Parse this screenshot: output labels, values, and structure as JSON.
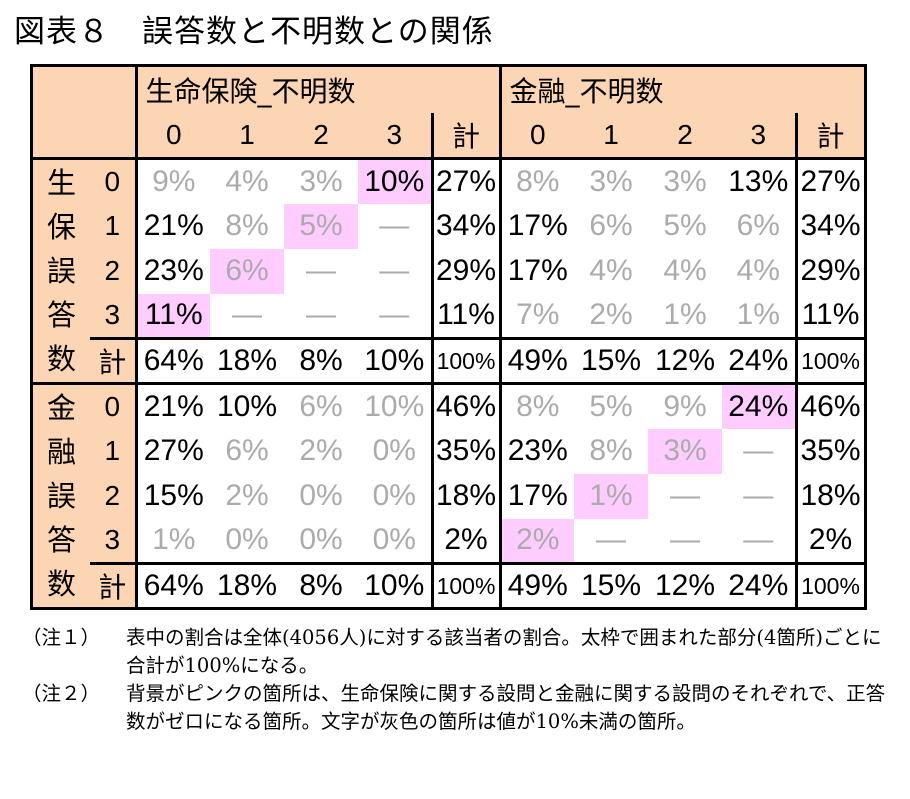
{
  "title": "図表８　誤答数と不明数との関係",
  "groups": {
    "life": "生命保険_不明数",
    "fin": "金融_不明数"
  },
  "col_labels": [
    "0",
    "1",
    "2",
    "3",
    "計"
  ],
  "row_groups": [
    {
      "label": "生保誤答数",
      "rows": [
        {
          "label": "0",
          "life": [
            "9%",
            "4%",
            "3%",
            "10%",
            "27%"
          ],
          "fin": [
            "8%",
            "3%",
            "3%",
            "13%",
            "27%"
          ]
        },
        {
          "label": "1",
          "life": [
            "21%",
            "8%",
            "5%",
            "—",
            "34%"
          ],
          "fin": [
            "17%",
            "6%",
            "5%",
            "6%",
            "34%"
          ]
        },
        {
          "label": "2",
          "life": [
            "23%",
            "6%",
            "—",
            "—",
            "29%"
          ],
          "fin": [
            "17%",
            "4%",
            "4%",
            "4%",
            "29%"
          ]
        },
        {
          "label": "3",
          "life": [
            "11%",
            "—",
            "—",
            "—",
            "11%"
          ],
          "fin": [
            "7%",
            "2%",
            "1%",
            "1%",
            "11%"
          ]
        },
        {
          "label": "計",
          "life": [
            "64%",
            "18%",
            "8%",
            "10%",
            "100%"
          ],
          "fin": [
            "49%",
            "15%",
            "12%",
            "24%",
            "100%"
          ]
        }
      ]
    },
    {
      "label": "金融誤答数",
      "rows": [
        {
          "label": "0",
          "life": [
            "21%",
            "10%",
            "6%",
            "10%",
            "46%"
          ],
          "fin": [
            "8%",
            "5%",
            "9%",
            "24%",
            "46%"
          ]
        },
        {
          "label": "1",
          "life": [
            "27%",
            "6%",
            "2%",
            "0%",
            "35%"
          ],
          "fin": [
            "23%",
            "8%",
            "3%",
            "—",
            "35%"
          ]
        },
        {
          "label": "2",
          "life": [
            "15%",
            "2%",
            "0%",
            "0%",
            "18%"
          ],
          "fin": [
            "17%",
            "1%",
            "—",
            "—",
            "18%"
          ]
        },
        {
          "label": "3",
          "life": [
            "1%",
            "0%",
            "0%",
            "0%",
            "2%"
          ],
          "fin": [
            "2%",
            "—",
            "—",
            "—",
            "2%"
          ]
        },
        {
          "label": "計",
          "life": [
            "64%",
            "18%",
            "8%",
            "10%",
            "100%"
          ],
          "fin": [
            "49%",
            "15%",
            "12%",
            "24%",
            "100%"
          ]
        }
      ]
    }
  ],
  "pink_cells": [
    [
      0,
      0,
      "life",
      3
    ],
    [
      0,
      1,
      "life",
      2
    ],
    [
      0,
      2,
      "life",
      1
    ],
    [
      0,
      3,
      "life",
      0
    ],
    [
      1,
      0,
      "fin",
      3
    ],
    [
      1,
      1,
      "fin",
      2
    ],
    [
      1,
      2,
      "fin",
      1
    ],
    [
      1,
      3,
      "fin",
      0
    ]
  ],
  "grey_cells": [
    [
      0,
      0,
      "life",
      0
    ],
    [
      0,
      0,
      "life",
      1
    ],
    [
      0,
      0,
      "life",
      2
    ],
    [
      0,
      1,
      "life",
      1
    ],
    [
      0,
      1,
      "life",
      2
    ],
    [
      0,
      1,
      "life",
      3
    ],
    [
      0,
      2,
      "life",
      1
    ],
    [
      0,
      2,
      "life",
      2
    ],
    [
      0,
      2,
      "life",
      3
    ],
    [
      0,
      3,
      "life",
      1
    ],
    [
      0,
      3,
      "life",
      2
    ],
    [
      0,
      3,
      "life",
      3
    ],
    [
      0,
      0,
      "fin",
      0
    ],
    [
      0,
      0,
      "fin",
      1
    ],
    [
      0,
      0,
      "fin",
      2
    ],
    [
      0,
      1,
      "fin",
      1
    ],
    [
      0,
      1,
      "fin",
      2
    ],
    [
      0,
      1,
      "fin",
      3
    ],
    [
      0,
      2,
      "fin",
      1
    ],
    [
      0,
      2,
      "fin",
      2
    ],
    [
      0,
      2,
      "fin",
      3
    ],
    [
      0,
      3,
      "fin",
      0
    ],
    [
      0,
      3,
      "fin",
      1
    ],
    [
      0,
      3,
      "fin",
      2
    ],
    [
      0,
      3,
      "fin",
      3
    ],
    [
      1,
      0,
      "life",
      2
    ],
    [
      1,
      0,
      "life",
      3
    ],
    [
      1,
      1,
      "life",
      1
    ],
    [
      1,
      1,
      "life",
      2
    ],
    [
      1,
      1,
      "life",
      3
    ],
    [
      1,
      2,
      "life",
      1
    ],
    [
      1,
      2,
      "life",
      2
    ],
    [
      1,
      2,
      "life",
      3
    ],
    [
      1,
      3,
      "life",
      0
    ],
    [
      1,
      3,
      "life",
      1
    ],
    [
      1,
      3,
      "life",
      2
    ],
    [
      1,
      3,
      "life",
      3
    ],
    [
      1,
      0,
      "fin",
      0
    ],
    [
      1,
      0,
      "fin",
      1
    ],
    [
      1,
      0,
      "fin",
      2
    ],
    [
      1,
      1,
      "fin",
      1
    ],
    [
      1,
      1,
      "fin",
      2
    ],
    [
      1,
      1,
      "fin",
      3
    ],
    [
      1,
      2,
      "fin",
      1
    ],
    [
      1,
      2,
      "fin",
      2
    ],
    [
      1,
      2,
      "fin",
      3
    ],
    [
      1,
      3,
      "fin",
      0
    ],
    [
      1,
      3,
      "fin",
      1
    ],
    [
      1,
      3,
      "fin",
      2
    ],
    [
      1,
      3,
      "fin",
      3
    ]
  ],
  "colors": {
    "header_bg": "#fcd5b4",
    "pink": "#ffccff",
    "grey_text": "#ababab"
  },
  "notes": [
    {
      "label": "（注１）",
      "text": "表中の割合は全体(4056人)に対する該当者の割合。太枠で囲まれた部分(4箇所)ごとに合計が100%になる。"
    },
    {
      "label": "（注２）",
      "text": "背景がピンクの箇所は、生命保険に関する設問と金融に関する設問のそれぞれで、正答数がゼロになる箇所。文字が灰色の箇所は値が10%未満の箇所。"
    }
  ]
}
